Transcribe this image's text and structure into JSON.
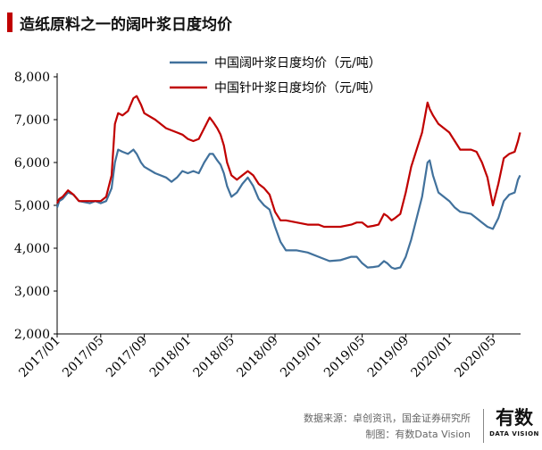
{
  "header": {
    "title": "造纸原料之一的阔叶浆日度均价"
  },
  "footer": {
    "source": "数据来源：卓创资讯，国金证券研究所",
    "credit": "制图：有数Data Vision"
  },
  "logo": {
    "main": "有数",
    "sub": "DATA VISION"
  },
  "chart_data": {
    "type": "line",
    "x_ticks": [
      "2017/01",
      "2017/05",
      "2017/09",
      "2018/01",
      "2018/05",
      "2018/09",
      "2019/01",
      "2019/05",
      "2019/09",
      "2020/01",
      "2020/05"
    ],
    "ylim": [
      2000,
      8000
    ],
    "y_ticks": [
      "2,000",
      "3,000",
      "4,000",
      "5,000",
      "6,000",
      "7,000",
      "8,000"
    ],
    "grid": false,
    "legend_position": "top-center",
    "series": [
      {
        "name": "中国阔叶浆日度均价（元/吨）",
        "color": "#41719c",
        "points": [
          [
            "2017/01",
            4950
          ],
          [
            "2017/01.2",
            5100
          ],
          [
            "2017/01.5",
            5150
          ],
          [
            "2017/02",
            5300
          ],
          [
            "2017/02.5",
            5250
          ],
          [
            "2017/03",
            5100
          ],
          [
            "2017/04",
            5050
          ],
          [
            "2017/04.5",
            5100
          ],
          [
            "2017/05",
            5050
          ],
          [
            "2017/05.5",
            5100
          ],
          [
            "2017/06",
            5400
          ],
          [
            "2017/06.3",
            6000
          ],
          [
            "2017/06.6",
            6300
          ],
          [
            "2017/07",
            6250
          ],
          [
            "2017/07.5",
            6200
          ],
          [
            "2017/08",
            6300
          ],
          [
            "2017/08.3",
            6200
          ],
          [
            "2017/08.7",
            6000
          ],
          [
            "2017/09",
            5900
          ],
          [
            "2017/10",
            5750
          ],
          [
            "2017/11",
            5650
          ],
          [
            "2017/11.5",
            5550
          ],
          [
            "2017/12",
            5650
          ],
          [
            "2017/12.5",
            5800
          ],
          [
            "2018/01",
            5750
          ],
          [
            "2018/01.5",
            5800
          ],
          [
            "2018/02",
            5750
          ],
          [
            "2018/02.5",
            6000
          ],
          [
            "2018/03",
            6200
          ],
          [
            "2018/03.3",
            6200
          ],
          [
            "2018/03.7",
            6050
          ],
          [
            "2018/04",
            5950
          ],
          [
            "2018/04.3",
            5750
          ],
          [
            "2018/04.6",
            5450
          ],
          [
            "2018/05",
            5200
          ],
          [
            "2018/05.5",
            5300
          ],
          [
            "2018/06",
            5500
          ],
          [
            "2018/06.5",
            5650
          ],
          [
            "2018/07",
            5450
          ],
          [
            "2018/07.5",
            5150
          ],
          [
            "2018/08",
            5000
          ],
          [
            "2018/08.5",
            4900
          ],
          [
            "2018/09",
            4500
          ],
          [
            "2018/09.5",
            4150
          ],
          [
            "2018/10",
            3950
          ],
          [
            "2018/11",
            3950
          ],
          [
            "2018/12",
            3900
          ],
          [
            "2019/01",
            3800
          ],
          [
            "2019/01.5",
            3750
          ],
          [
            "2019/02",
            3700
          ],
          [
            "2019/03",
            3720
          ],
          [
            "2019/04",
            3800
          ],
          [
            "2019/04.5",
            3800
          ],
          [
            "2019/05",
            3650
          ],
          [
            "2019/05.5",
            3550
          ],
          [
            "2019/06",
            3560
          ],
          [
            "2019/06.5",
            3580
          ],
          [
            "2019/07",
            3700
          ],
          [
            "2019/07.3",
            3650
          ],
          [
            "2019/07.7",
            3550
          ],
          [
            "2019/08",
            3520
          ],
          [
            "2019/08.5",
            3550
          ],
          [
            "2019/09",
            3800
          ],
          [
            "2019/09.5",
            4200
          ],
          [
            "2019/10",
            4700
          ],
          [
            "2019/10.5",
            5200
          ],
          [
            "2019/11",
            6000
          ],
          [
            "2019/11.2",
            6050
          ],
          [
            "2019/11.5",
            5700
          ],
          [
            "2019/12",
            5300
          ],
          [
            "2020/01",
            5100
          ],
          [
            "2020/01.5",
            4950
          ],
          [
            "2020/02",
            4850
          ],
          [
            "2020/03",
            4800
          ],
          [
            "2020/03.5",
            4700
          ],
          [
            "2020/04",
            4600
          ],
          [
            "2020/04.5",
            4500
          ],
          [
            "2020/05",
            4450
          ],
          [
            "2020/05.5",
            4700
          ],
          [
            "2020/06",
            5100
          ],
          [
            "2020/06.5",
            5250
          ],
          [
            "2020/07",
            5300
          ],
          [
            "2020/07.3",
            5600
          ],
          [
            "2020/07.5",
            5700
          ]
        ]
      },
      {
        "name": "中国针叶浆日度均价（元/吨）",
        "color": "#c00000",
        "points": [
          [
            "2017/01",
            5050
          ],
          [
            "2017/01.2",
            5150
          ],
          [
            "2017/01.5",
            5200
          ],
          [
            "2017/02",
            5350
          ],
          [
            "2017/02.5",
            5250
          ],
          [
            "2017/03",
            5100
          ],
          [
            "2017/04",
            5100
          ],
          [
            "2017/04.5",
            5100
          ],
          [
            "2017/05",
            5100
          ],
          [
            "2017/05.5",
            5200
          ],
          [
            "2017/06",
            5700
          ],
          [
            "2017/06.3",
            6900
          ],
          [
            "2017/06.6",
            7150
          ],
          [
            "2017/07",
            7100
          ],
          [
            "2017/07.5",
            7200
          ],
          [
            "2017/08",
            7500
          ],
          [
            "2017/08.3",
            7550
          ],
          [
            "2017/08.7",
            7350
          ],
          [
            "2017/09",
            7150
          ],
          [
            "2017/10",
            7000
          ],
          [
            "2017/11",
            6800
          ],
          [
            "2017/11.5",
            6750
          ],
          [
            "2017/12",
            6700
          ],
          [
            "2017/12.5",
            6650
          ],
          [
            "2018/01",
            6550
          ],
          [
            "2018/01.5",
            6500
          ],
          [
            "2018/02",
            6550
          ],
          [
            "2018/02.5",
            6800
          ],
          [
            "2018/03",
            7050
          ],
          [
            "2018/03.3",
            6950
          ],
          [
            "2018/03.7",
            6800
          ],
          [
            "2018/04",
            6650
          ],
          [
            "2018/04.3",
            6400
          ],
          [
            "2018/04.6",
            6000
          ],
          [
            "2018/05",
            5700
          ],
          [
            "2018/05.5",
            5600
          ],
          [
            "2018/06",
            5700
          ],
          [
            "2018/06.5",
            5800
          ],
          [
            "2018/07",
            5700
          ],
          [
            "2018/07.5",
            5500
          ],
          [
            "2018/08",
            5400
          ],
          [
            "2018/08.5",
            5250
          ],
          [
            "2018/09",
            4850
          ],
          [
            "2018/09.5",
            4650
          ],
          [
            "2018/10",
            4650
          ],
          [
            "2018/11",
            4600
          ],
          [
            "2018/12",
            4550
          ],
          [
            "2019/01",
            4550
          ],
          [
            "2019/01.5",
            4500
          ],
          [
            "2019/02",
            4500
          ],
          [
            "2019/03",
            4500
          ],
          [
            "2019/04",
            4550
          ],
          [
            "2019/04.5",
            4600
          ],
          [
            "2019/05",
            4600
          ],
          [
            "2019/05.5",
            4500
          ],
          [
            "2019/06",
            4520
          ],
          [
            "2019/06.5",
            4550
          ],
          [
            "2019/07",
            4800
          ],
          [
            "2019/07.3",
            4750
          ],
          [
            "2019/07.7",
            4650
          ],
          [
            "2019/08",
            4700
          ],
          [
            "2019/08.5",
            4800
          ],
          [
            "2019/09",
            5300
          ],
          [
            "2019/09.5",
            5900
          ],
          [
            "2019/10",
            6300
          ],
          [
            "2019/10.5",
            6700
          ],
          [
            "2019/11",
            7400
          ],
          [
            "2019/11.2",
            7250
          ],
          [
            "2019/11.5",
            7100
          ],
          [
            "2019/12",
            6900
          ],
          [
            "2020/01",
            6700
          ],
          [
            "2020/01.5",
            6500
          ],
          [
            "2020/02",
            6300
          ],
          [
            "2020/03",
            6300
          ],
          [
            "2020/03.5",
            6250
          ],
          [
            "2020/04",
            6000
          ],
          [
            "2020/04.5",
            5650
          ],
          [
            "2020/05",
            5000
          ],
          [
            "2020/05.5",
            5500
          ],
          [
            "2020/06",
            6100
          ],
          [
            "2020/06.5",
            6200
          ],
          [
            "2020/07",
            6250
          ],
          [
            "2020/07.3",
            6500
          ],
          [
            "2020/07.5",
            6700
          ]
        ]
      }
    ]
  }
}
